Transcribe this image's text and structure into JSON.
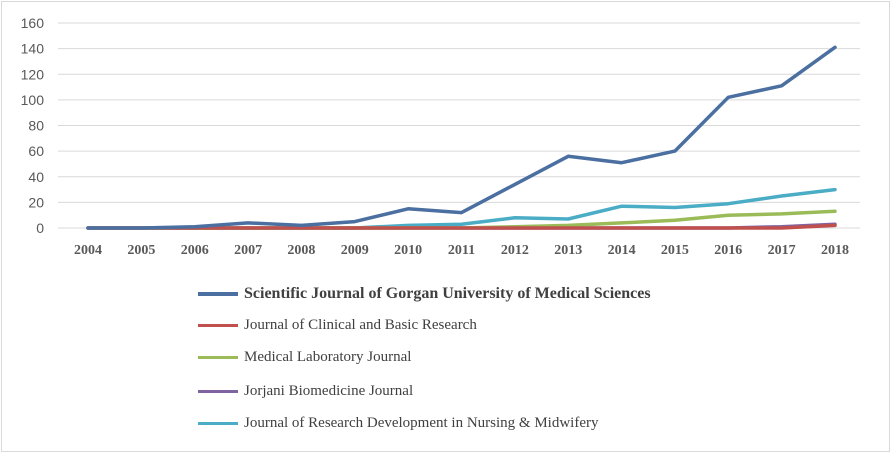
{
  "chart_data": {
    "type": "line",
    "title": "",
    "xlabel": "",
    "ylabel": "",
    "ylim": [
      0,
      160
    ],
    "yticks": [
      0,
      20,
      40,
      60,
      80,
      100,
      120,
      140,
      160
    ],
    "grid": true,
    "legend_position": "bottom",
    "categories": [
      "2004",
      "2005",
      "2006",
      "2007",
      "2008",
      "2009",
      "2010",
      "2011",
      "2012",
      "2013",
      "2014",
      "2015",
      "2016",
      "2017",
      "2018"
    ],
    "series": [
      {
        "name": "Scientific Journal of Gorgan University of Medical Sciences",
        "color": "#4a6fa0",
        "values": [
          0,
          0,
          1,
          4,
          2,
          5,
          15,
          12,
          34,
          56,
          51,
          60,
          102,
          111,
          141
        ]
      },
      {
        "name": "Journal of Clinical and Basic Research",
        "color": "#c0504d",
        "values": [
          0,
          0,
          0,
          0,
          0,
          0,
          0,
          0,
          0,
          0,
          0,
          0,
          0,
          0,
          2
        ]
      },
      {
        "name": "Medical Laboratory Journal",
        "color": "#9bbb59",
        "values": [
          0,
          0,
          0,
          0,
          0,
          0,
          0,
          0,
          1,
          2,
          4,
          6,
          10,
          11,
          13
        ]
      },
      {
        "name": "Jorjani Biomedicine Journal",
        "color": "#8064a2",
        "values": [
          0,
          0,
          0,
          0,
          0,
          0,
          0,
          0,
          0,
          0,
          0,
          0,
          0,
          1,
          3
        ]
      },
      {
        "name": "Journal of Research Development in Nursing & Midwifery",
        "color": "#4bacc6",
        "values": [
          0,
          0,
          0,
          0,
          0,
          0,
          2,
          3,
          8,
          7,
          17,
          16,
          19,
          25,
          30
        ]
      }
    ]
  }
}
